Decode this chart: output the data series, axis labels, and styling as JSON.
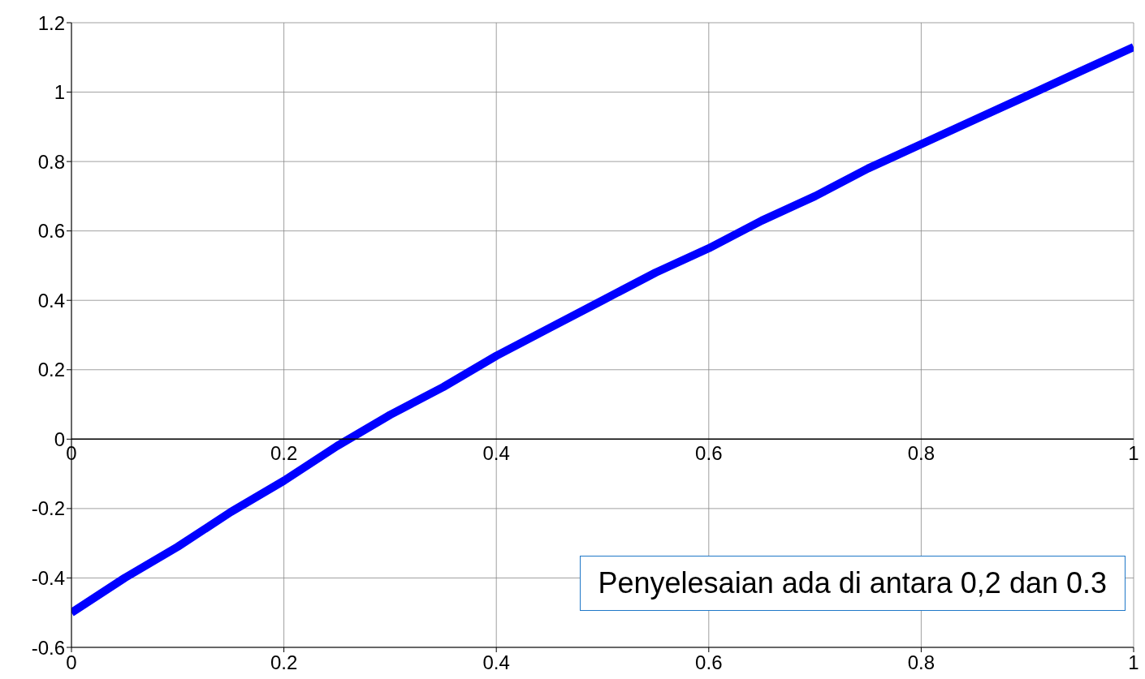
{
  "chart_data": {
    "type": "line",
    "x": [
      0,
      0.05,
      0.1,
      0.15,
      0.2,
      0.25,
      0.3,
      0.35,
      0.4,
      0.45,
      0.5,
      0.55,
      0.6,
      0.65,
      0.7,
      0.75,
      0.8,
      0.85,
      0.9,
      0.95,
      1
    ],
    "series": [
      {
        "color": "#0000ff",
        "values": [
          -0.5,
          -0.4,
          -0.31,
          -0.21,
          -0.12,
          -0.02,
          0.07,
          0.15,
          0.24,
          0.32,
          0.4,
          0.48,
          0.55,
          0.63,
          0.7,
          0.78,
          0.85,
          0.92,
          0.99,
          1.06,
          1.13
        ]
      }
    ],
    "xlim": [
      0,
      1
    ],
    "xticks": [
      0,
      0.2,
      0.4,
      0.6,
      0.8,
      1
    ],
    "x2lim": [
      0,
      1
    ],
    "x2ticks": [
      0,
      0.2,
      0.4,
      0.6,
      0.8,
      1
    ],
    "ylim": [
      -0.6,
      1.2
    ],
    "yticks": [
      -0.6,
      -0.4,
      -0.2,
      0,
      0.2,
      0.4,
      0.6,
      0.8,
      1,
      1.2
    ],
    "grid": true,
    "marker": "none",
    "line_style": "solid",
    "annotations": [
      "Penyelesaian ada di antara 0,2 dan 0.3"
    ]
  }
}
